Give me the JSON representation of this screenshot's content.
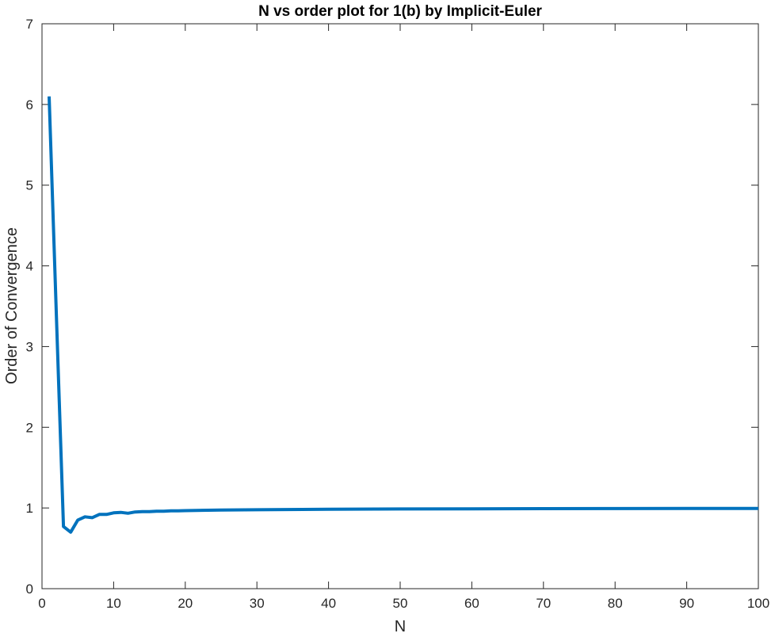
{
  "chart_data": {
    "type": "line",
    "title": "N vs order plot for 1(b) by Implicit-Euler",
    "xlabel": "N",
    "ylabel": "Order of Convergence",
    "xlim": [
      0,
      100
    ],
    "ylim": [
      0,
      7
    ],
    "xticks": [
      "0",
      "10",
      "20",
      "30",
      "40",
      "50",
      "60",
      "70",
      "80",
      "90",
      "100"
    ],
    "yticks": [
      "0",
      "1",
      "2",
      "3",
      "4",
      "5",
      "6",
      "7"
    ],
    "grid": false,
    "line_color": "#0072BD",
    "series": [
      {
        "x": [
          1,
          2,
          3,
          4,
          5,
          6,
          7,
          8,
          9,
          10,
          11,
          12,
          13,
          14,
          15,
          16,
          17,
          18,
          19,
          20,
          25,
          30,
          40,
          50,
          60,
          70,
          80,
          90,
          100
        ],
        "y": [
          6.1,
          3.4,
          0.77,
          0.7,
          0.85,
          0.89,
          0.88,
          0.92,
          0.92,
          0.94,
          0.945,
          0.935,
          0.95,
          0.955,
          0.955,
          0.96,
          0.96,
          0.965,
          0.965,
          0.967,
          0.975,
          0.978,
          0.984,
          0.988,
          0.99,
          0.992,
          0.993,
          0.994,
          0.995
        ]
      }
    ]
  }
}
